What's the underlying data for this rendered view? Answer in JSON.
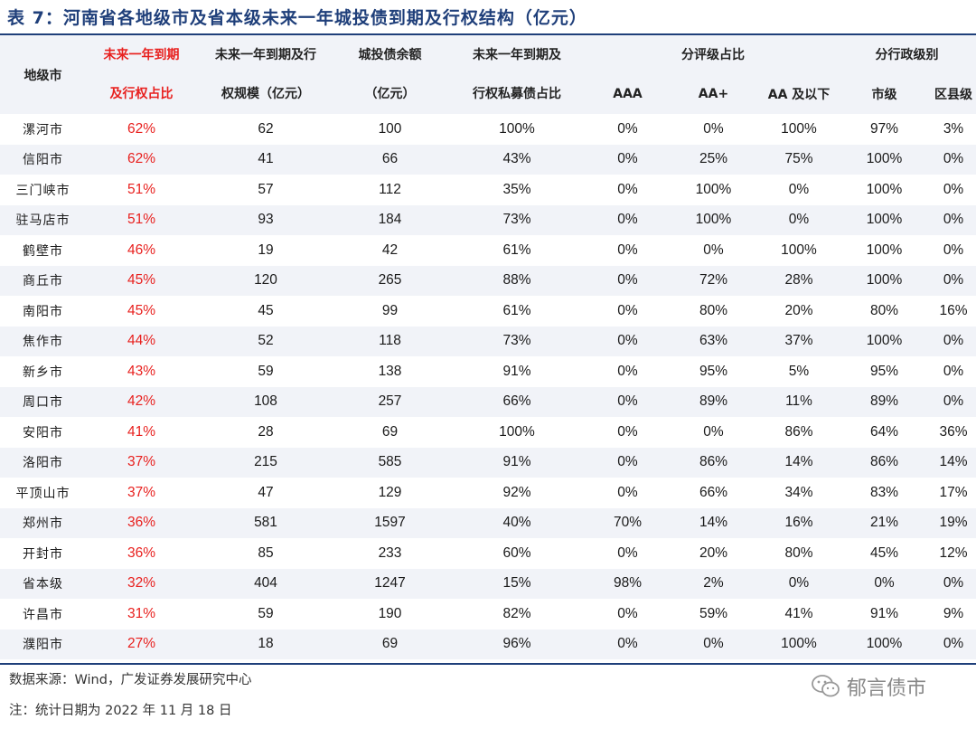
{
  "title": "表 7：河南省各地级市及省本级未来一年城投债到期及行权结构（亿元）",
  "headers": {
    "city": "地级市",
    "ratio_l1": "未来一年到期",
    "ratio_l2": "及行权占比",
    "scale_l1": "未来一年到期及行",
    "scale_l2": "权规模（亿元）",
    "balance_l1": "城投债余额",
    "balance_l2": "（亿元）",
    "private_l1": "未来一年到期及",
    "private_l2": "行权私募债占比",
    "rating_group": "分评级占比",
    "admin_group": "分行政级别",
    "aaa": "AAA",
    "aa_plus": "AA+",
    "aa_below": "AA 及以下",
    "city_level": "市级",
    "district_level": "区县级"
  },
  "rows": [
    {
      "city": "漯河市",
      "ratio": "62%",
      "scale": "62",
      "balance": "100",
      "private": "100%",
      "aaa": "0%",
      "aap": "0%",
      "aab": "100%",
      "cl": "97%",
      "dl": "3%"
    },
    {
      "city": "信阳市",
      "ratio": "62%",
      "scale": "41",
      "balance": "66",
      "private": "43%",
      "aaa": "0%",
      "aap": "25%",
      "aab": "75%",
      "cl": "100%",
      "dl": "0%"
    },
    {
      "city": "三门峡市",
      "ratio": "51%",
      "scale": "57",
      "balance": "112",
      "private": "35%",
      "aaa": "0%",
      "aap": "100%",
      "aab": "0%",
      "cl": "100%",
      "dl": "0%"
    },
    {
      "city": "驻马店市",
      "ratio": "51%",
      "scale": "93",
      "balance": "184",
      "private": "73%",
      "aaa": "0%",
      "aap": "100%",
      "aab": "0%",
      "cl": "100%",
      "dl": "0%"
    },
    {
      "city": "鹤壁市",
      "ratio": "46%",
      "scale": "19",
      "balance": "42",
      "private": "61%",
      "aaa": "0%",
      "aap": "0%",
      "aab": "100%",
      "cl": "100%",
      "dl": "0%"
    },
    {
      "city": "商丘市",
      "ratio": "45%",
      "scale": "120",
      "balance": "265",
      "private": "88%",
      "aaa": "0%",
      "aap": "72%",
      "aab": "28%",
      "cl": "100%",
      "dl": "0%"
    },
    {
      "city": "南阳市",
      "ratio": "45%",
      "scale": "45",
      "balance": "99",
      "private": "61%",
      "aaa": "0%",
      "aap": "80%",
      "aab": "20%",
      "cl": "80%",
      "dl": "16%"
    },
    {
      "city": "焦作市",
      "ratio": "44%",
      "scale": "52",
      "balance": "118",
      "private": "73%",
      "aaa": "0%",
      "aap": "63%",
      "aab": "37%",
      "cl": "100%",
      "dl": "0%"
    },
    {
      "city": "新乡市",
      "ratio": "43%",
      "scale": "59",
      "balance": "138",
      "private": "91%",
      "aaa": "0%",
      "aap": "95%",
      "aab": "5%",
      "cl": "95%",
      "dl": "0%"
    },
    {
      "city": "周口市",
      "ratio": "42%",
      "scale": "108",
      "balance": "257",
      "private": "66%",
      "aaa": "0%",
      "aap": "89%",
      "aab": "11%",
      "cl": "89%",
      "dl": "0%"
    },
    {
      "city": "安阳市",
      "ratio": "41%",
      "scale": "28",
      "balance": "69",
      "private": "100%",
      "aaa": "0%",
      "aap": "0%",
      "aab": "86%",
      "cl": "64%",
      "dl": "36%"
    },
    {
      "city": "洛阳市",
      "ratio": "37%",
      "scale": "215",
      "balance": "585",
      "private": "91%",
      "aaa": "0%",
      "aap": "86%",
      "aab": "14%",
      "cl": "86%",
      "dl": "14%"
    },
    {
      "city": "平顶山市",
      "ratio": "37%",
      "scale": "47",
      "balance": "129",
      "private": "92%",
      "aaa": "0%",
      "aap": "66%",
      "aab": "34%",
      "cl": "83%",
      "dl": "17%"
    },
    {
      "city": "郑州市",
      "ratio": "36%",
      "scale": "581",
      "balance": "1597",
      "private": "40%",
      "aaa": "70%",
      "aap": "14%",
      "aab": "16%",
      "cl": "21%",
      "dl": "19%"
    },
    {
      "city": "开封市",
      "ratio": "36%",
      "scale": "85",
      "balance": "233",
      "private": "60%",
      "aaa": "0%",
      "aap": "20%",
      "aab": "80%",
      "cl": "45%",
      "dl": "12%"
    },
    {
      "city": "省本级",
      "ratio": "32%",
      "scale": "404",
      "balance": "1247",
      "private": "15%",
      "aaa": "98%",
      "aap": "2%",
      "aab": "0%",
      "cl": "0%",
      "dl": "0%"
    },
    {
      "city": "许昌市",
      "ratio": "31%",
      "scale": "59",
      "balance": "190",
      "private": "82%",
      "aaa": "0%",
      "aap": "59%",
      "aab": "41%",
      "cl": "91%",
      "dl": "9%"
    },
    {
      "city": "濮阳市",
      "ratio": "27%",
      "scale": "18",
      "balance": "69",
      "private": "96%",
      "aaa": "0%",
      "aap": "0%",
      "aab": "100%",
      "cl": "100%",
      "dl": "0%"
    }
  ],
  "source": "数据来源：Wind，广发证券发展研究中心",
  "note": "注：统计日期为 2022 年 11 月 18 日",
  "watermark": "郁言债市",
  "colors": {
    "accent": "#1f3f7a",
    "highlight": "#e8201e",
    "stripe": "#f1f3f8"
  }
}
